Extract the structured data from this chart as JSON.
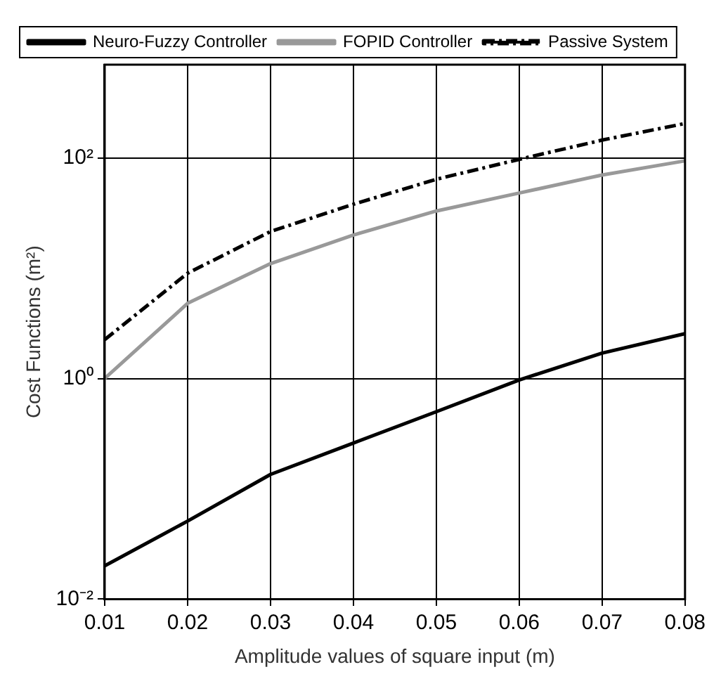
{
  "chart_data": {
    "type": "line",
    "xlabel": "Amplitude values of square input (m)",
    "ylabel": "Cost Functions (m²)",
    "x": [
      0.01,
      0.02,
      0.03,
      0.04,
      0.05,
      0.06,
      0.07,
      0.08
    ],
    "series": [
      {
        "name": "Neuro-Fuzzy Controller",
        "color": "#000000",
        "line_style": "solid",
        "values": [
          0.02,
          0.051,
          0.135,
          0.26,
          0.5,
          0.97,
          1.7,
          2.55
        ]
      },
      {
        "name": "FOPID Controller",
        "color": "#999999",
        "line_style": "solid",
        "values": [
          1.0,
          4.8,
          11,
          20,
          33,
          48,
          70,
          94
        ]
      },
      {
        "name": "Passive System",
        "color": "#000000",
        "line_style": "dashed",
        "values": [
          2.25,
          9,
          21.5,
          38,
          64,
          97,
          145,
          205
        ]
      }
    ],
    "log": "y",
    "xlim": [
      0.01,
      0.08
    ],
    "xticks": [
      0.01,
      0.02,
      0.03,
      0.04,
      0.05,
      0.06,
      0.07,
      0.08
    ],
    "ylim": [
      0.01,
      700
    ],
    "yticks": [
      {
        "value": 0.01,
        "label": "10⁻²"
      },
      {
        "value": 1,
        "label": "10⁰"
      },
      {
        "value": 100,
        "label": "10²"
      }
    ],
    "grid": true,
    "legend": "top left",
    "marker": "none"
  }
}
